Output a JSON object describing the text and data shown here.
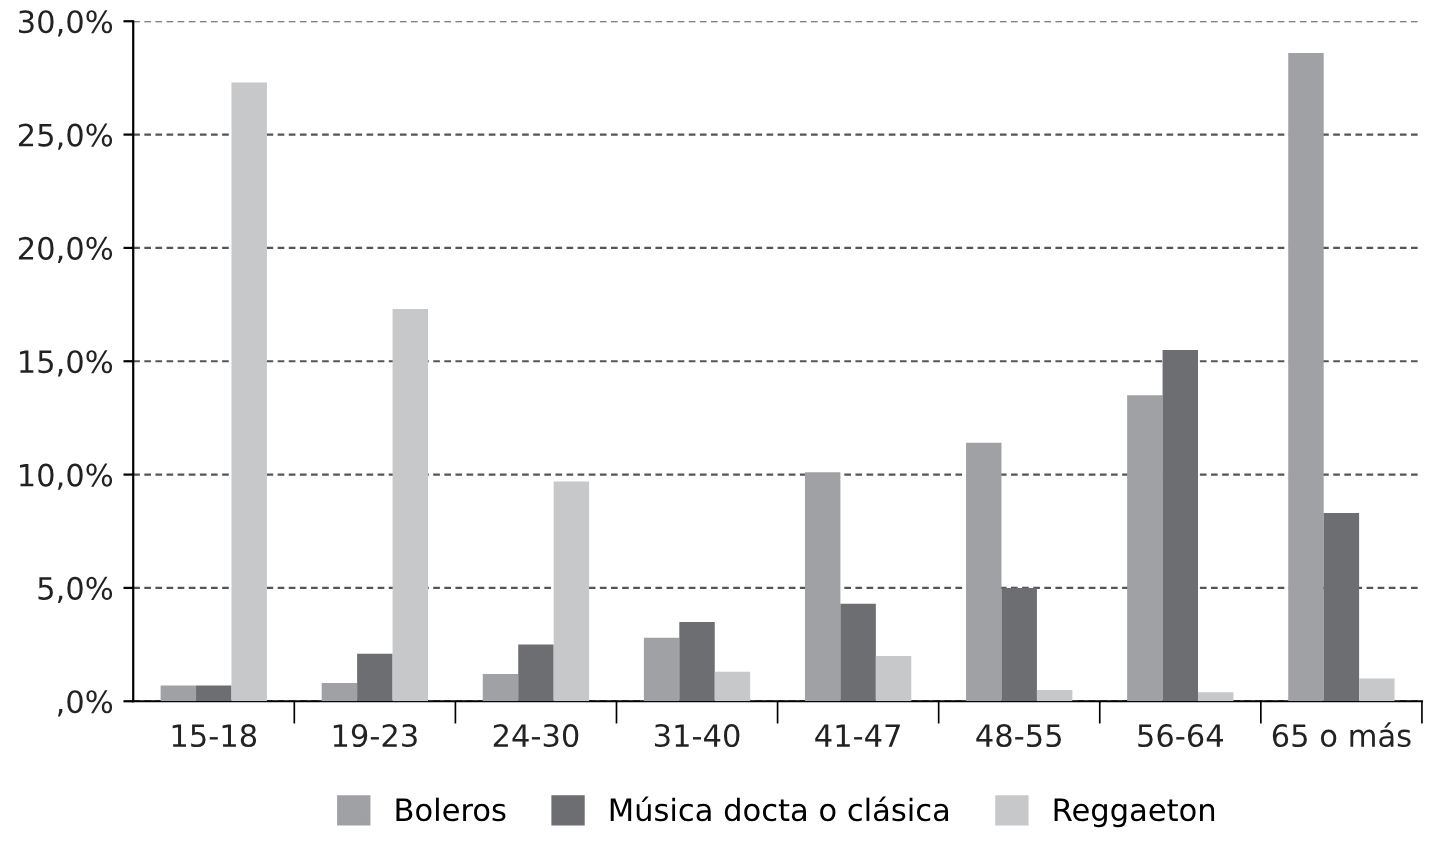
{
  "chart_data": {
    "type": "bar",
    "categories": [
      "15-18",
      "19-23",
      "24-30",
      "31-40",
      "41-47",
      "48-55",
      "56-64",
      "65 o más"
    ],
    "series": [
      {
        "name": "Boleros",
        "color": "#a0a1a4",
        "values": [
          0.7,
          0.8,
          1.2,
          2.8,
          10.1,
          11.4,
          13.5,
          28.6
        ]
      },
      {
        "name": "Música docta o clásica",
        "color": "#6d6e71",
        "values": [
          0.7,
          2.1,
          2.5,
          3.5,
          4.3,
          5.0,
          15.5,
          8.3
        ]
      },
      {
        "name": "Reggaeton",
        "color": "#c7c8c9",
        "values": [
          27.3,
          17.3,
          9.7,
          1.3,
          2.0,
          0.5,
          0.4,
          1.0
        ]
      }
    ],
    "ylim": [
      0,
      30
    ],
    "yticks": [
      {
        "value": 0,
        "label": ",0%"
      },
      {
        "value": 5,
        "label": "5,0%"
      },
      {
        "value": 10,
        "label": "10,0%"
      },
      {
        "value": 15,
        "label": "15,0%"
      },
      {
        "value": 20,
        "label": "20,0%"
      },
      {
        "value": 25,
        "label": "25,0%"
      },
      {
        "value": 30,
        "label": "30,0%"
      }
    ],
    "grid": "y",
    "legend": "bottom"
  }
}
